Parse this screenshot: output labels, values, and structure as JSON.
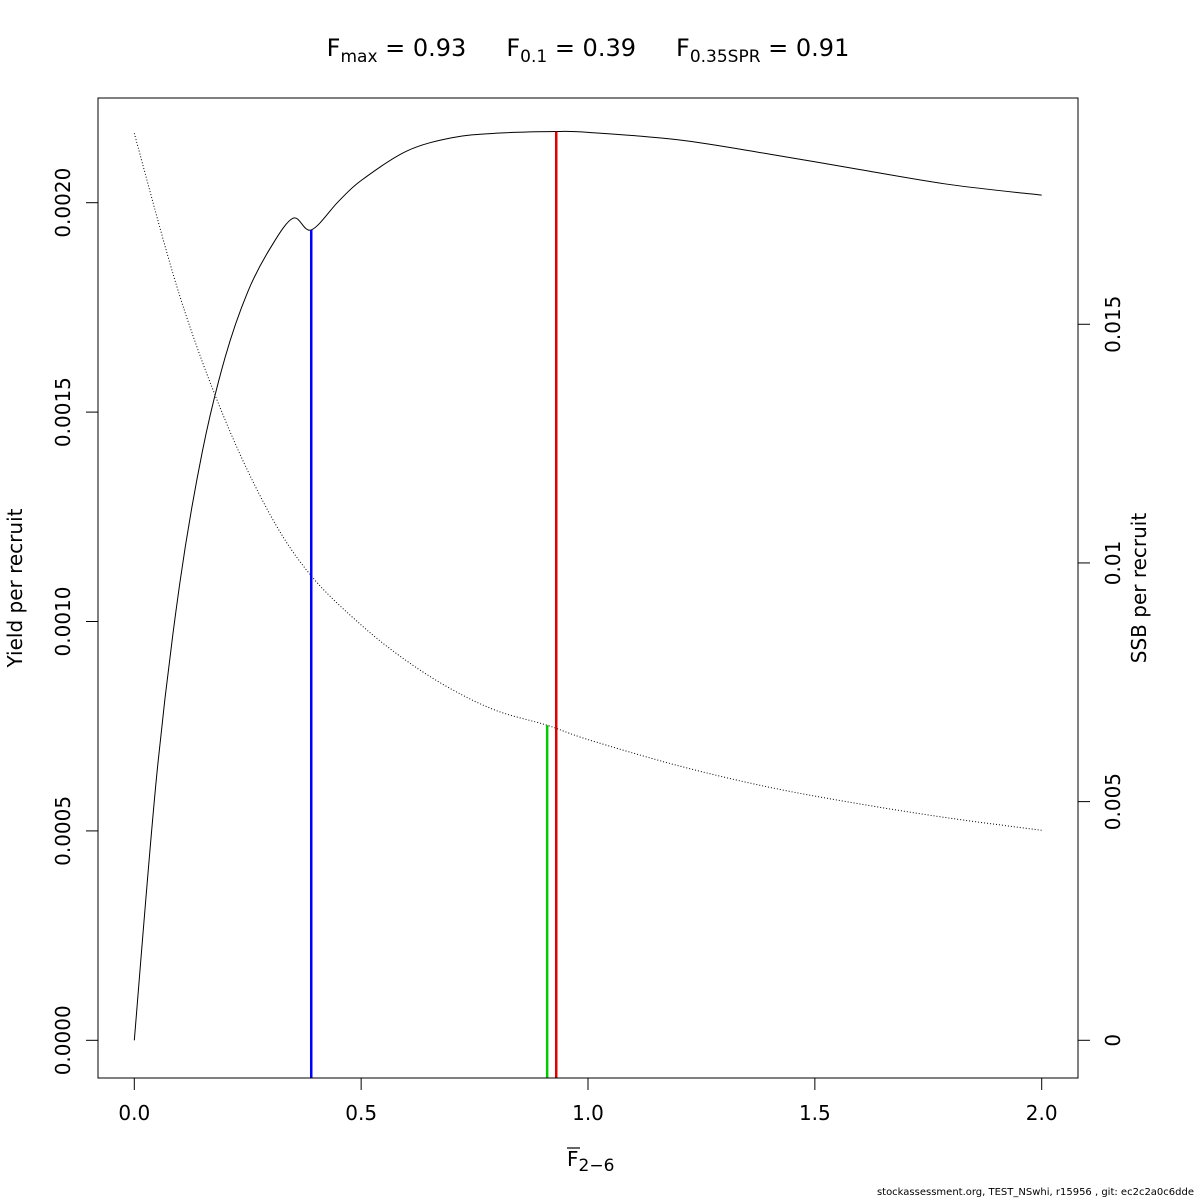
{
  "chart_data": {
    "type": "line",
    "title": {
      "items": [
        {
          "main": "F",
          "sub": "max",
          "rest": " = 0.93"
        },
        {
          "main": "F",
          "sub": "0.1",
          "rest": " = 0.39"
        },
        {
          "main": "F",
          "sub": "0.35SPR",
          "rest": " = 0.91"
        }
      ]
    },
    "xlabel": {
      "main": "F",
      "sub": "2−6"
    },
    "ylabel": "Yield per recruit",
    "ylabel_right": "SSB per recruit",
    "xlim": [
      -0.08,
      2.08
    ],
    "ylim": [
      -9e-05,
      0.00225
    ],
    "ylim_right": [
      -0.00079,
      0.01974
    ],
    "x_ticks": [
      {
        "value": 0.0,
        "label": "0.0"
      },
      {
        "value": 0.5,
        "label": "0.5"
      },
      {
        "value": 1.0,
        "label": "1.0"
      },
      {
        "value": 1.5,
        "label": "1.5"
      },
      {
        "value": 2.0,
        "label": "2.0"
      }
    ],
    "y_ticks": [
      {
        "value": 0.0,
        "label": "0.0000"
      },
      {
        "value": 0.0005,
        "label": "0.0005"
      },
      {
        "value": 0.001,
        "label": "0.0010"
      },
      {
        "value": 0.0015,
        "label": "0.0015"
      },
      {
        "value": 0.002,
        "label": "0.0020"
      }
    ],
    "y_right_ticks": [
      {
        "value": 0.0,
        "label": "0"
      },
      {
        "value": 0.005,
        "label": "0.005"
      },
      {
        "value": 0.01,
        "label": "0.01"
      },
      {
        "value": 0.015,
        "label": "0.015"
      }
    ],
    "series": [
      {
        "axis": "left",
        "style": "solid",
        "x": [
          0,
          0.05,
          0.1,
          0.15,
          0.2,
          0.25,
          0.3,
          0.35,
          0.39,
          0.45,
          0.5,
          0.6,
          0.7,
          0.8,
          0.93,
          1.0,
          1.2,
          1.4,
          1.6,
          1.8,
          2.0
        ],
        "y": [
          0,
          0.000639,
          0.001089,
          0.001406,
          0.00163,
          0.001787,
          0.001892,
          0.001963,
          0.001935,
          0.002003,
          0.002053,
          0.002123,
          0.002155,
          0.002166,
          0.00217,
          0.002168,
          0.00215,
          0.002116,
          0.002079,
          0.002043,
          0.002018
        ]
      },
      {
        "axis": "right",
        "style": "dotted",
        "x": [
          0,
          0.1,
          0.2,
          0.3,
          0.39,
          0.5,
          0.6,
          0.7,
          0.8,
          0.91,
          1.0,
          1.2,
          1.4,
          1.6,
          1.8,
          2.0
        ],
        "y": [
          0.019,
          0.0156,
          0.013,
          0.011,
          0.00973,
          0.0087,
          0.00795,
          0.00735,
          0.0069,
          0.0066,
          0.0063,
          0.00575,
          0.0053,
          0.00495,
          0.00465,
          0.0044
        ]
      }
    ],
    "reference_lines": [
      {
        "name": "F0.1",
        "x": 0.39,
        "y_top": 0.001935,
        "axis": "left",
        "color": "#0000ff"
      },
      {
        "name": "F0.35SPR",
        "x": 0.91,
        "y_top": 0.0066,
        "axis": "right",
        "color": "#00cc00"
      },
      {
        "name": "Fmax",
        "x": 0.93,
        "y_top": 0.00217,
        "axis": "left",
        "color": "#e00000"
      }
    ],
    "grid": false,
    "legend": "none"
  },
  "footer": "stockassessment.org, TEST_NSwhi, r15956 , git: ec2c2a0c6dde"
}
